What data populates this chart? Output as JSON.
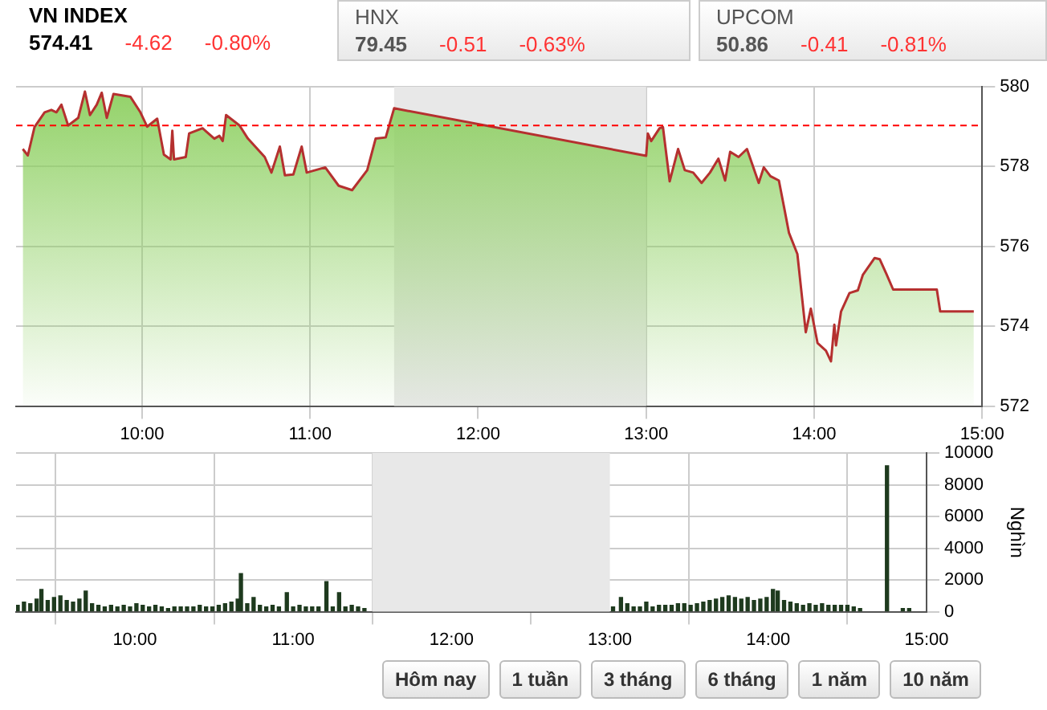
{
  "chart_data": [
    {
      "type": "other",
      "title": "VN INDEX",
      "annotations": [
        "574.41",
        "-4.62",
        "-0.80%"
      ]
    },
    {
      "type": "other",
      "title": "HNX",
      "annotations": [
        "79.45",
        "-0.51",
        "-0.63%"
      ]
    },
    {
      "type": "other",
      "title": "UPCOM",
      "annotations": [
        "50.86",
        "-0.41",
        "-0.81%"
      ]
    },
    {
      "type": "area",
      "xlim": [
        9.25,
        15
      ],
      "ylim": [
        572,
        580
      ],
      "xticks": [
        {
          "value": 10,
          "label": "10:00"
        },
        {
          "value": 11,
          "label": "11:00"
        },
        {
          "value": 12,
          "label": "12:00"
        },
        {
          "value": 13,
          "label": "13:00"
        },
        {
          "value": 14,
          "label": "14:00"
        },
        {
          "value": 15,
          "label": "15:00"
        }
      ],
      "yticks": [
        572,
        574,
        576,
        578,
        580
      ],
      "grid": true,
      "bands": [
        {
          "axis": "x",
          "from": 11.5,
          "to": 13,
          "color": "#e8e8e8"
        }
      ],
      "ref_lines": [
        {
          "axis": "y",
          "value": 579.03,
          "color": "#ff0000",
          "line_style": "dashed"
        }
      ],
      "series": [
        {
          "color": "#b5302f",
          "x": [
            9.29,
            9.32,
            9.36,
            9.42,
            9.46,
            9.49,
            9.52,
            9.56,
            9.62,
            9.66,
            9.69,
            9.73,
            9.76,
            9.79,
            9.83,
            9.93,
            9.99,
            10.03,
            10.09,
            10.13,
            10.17,
            10.18,
            10.19,
            10.26,
            10.28,
            10.36,
            10.43,
            10.46,
            10.48,
            10.5,
            10.58,
            10.63,
            10.73,
            10.77,
            10.82,
            10.85,
            10.9,
            10.95,
            10.98,
            11.09,
            11.17,
            11.25,
            11.34,
            11.39,
            11.45,
            11.5,
            13.0,
            13.01,
            13.03,
            13.08,
            13.1,
            13.14,
            13.19,
            13.23,
            13.28,
            13.33,
            13.38,
            13.43,
            13.47,
            13.5,
            13.55,
            13.6,
            13.67,
            13.7,
            13.74,
            13.79,
            13.82,
            13.85,
            13.9,
            13.95,
            13.98,
            14.02,
            14.07,
            14.1,
            14.12,
            14.13,
            14.16,
            14.21,
            14.26,
            14.29,
            14.36,
            14.39,
            14.43,
            14.47,
            14.73,
            14.75,
            14.95
          ],
          "values": [
            578.44,
            578.28,
            578.99,
            579.36,
            579.42,
            579.36,
            579.55,
            579.03,
            579.22,
            579.88,
            579.29,
            579.55,
            579.85,
            579.22,
            579.82,
            579.75,
            579.36,
            579.0,
            579.2,
            578.3,
            578.18,
            578.9,
            578.18,
            578.24,
            578.83,
            578.96,
            578.7,
            578.77,
            578.64,
            579.29,
            579.03,
            578.7,
            578.24,
            577.85,
            578.5,
            577.78,
            577.8,
            578.5,
            577.85,
            577.98,
            577.52,
            577.41,
            577.91,
            578.7,
            578.73,
            579.46,
            578.27,
            578.83,
            578.64,
            578.96,
            578.99,
            577.63,
            578.44,
            577.91,
            577.85,
            577.59,
            577.85,
            578.2,
            577.65,
            578.37,
            578.24,
            578.44,
            577.59,
            577.98,
            577.76,
            577.65,
            577.0,
            576.34,
            575.81,
            573.85,
            574.44,
            573.58,
            573.39,
            573.12,
            574.04,
            573.52,
            574.37,
            574.83,
            574.9,
            575.29,
            575.71,
            575.68,
            575.31,
            574.92,
            574.92,
            574.37,
            574.37
          ]
        }
      ]
    },
    {
      "type": "bar",
      "ylabel": "Nghìn",
      "xlim": [
        9.25,
        15
      ],
      "ylim": [
        0,
        10000
      ],
      "xticks": [
        {
          "value": 10,
          "label": "10:00"
        },
        {
          "value": 11,
          "label": "11:00"
        },
        {
          "value": 12,
          "label": "12:00"
        },
        {
          "value": 13,
          "label": "13:00"
        },
        {
          "value": 14,
          "label": "14:00"
        },
        {
          "value": 15,
          "label": "15:00"
        }
      ],
      "yticks": [
        0,
        2000,
        4000,
        6000,
        8000,
        10000
      ],
      "grid": true,
      "bands": [
        {
          "axis": "x",
          "from": 11.5,
          "to": 13,
          "color": "#e8e8e8"
        }
      ],
      "series": [
        {
          "color": "#1e3a1e",
          "x": [
            9.26,
            9.3,
            9.34,
            9.38,
            9.41,
            9.45,
            9.49,
            9.53,
            9.57,
            9.61,
            9.65,
            9.69,
            9.73,
            9.77,
            9.81,
            9.85,
            9.89,
            9.93,
            9.97,
            10.01,
            10.05,
            10.09,
            10.13,
            10.17,
            10.21,
            10.25,
            10.29,
            10.33,
            10.37,
            10.41,
            10.45,
            10.49,
            10.53,
            10.57,
            10.61,
            10.65,
            10.67,
            10.71,
            10.75,
            10.79,
            10.83,
            10.87,
            10.91,
            10.96,
            11.0,
            11.04,
            11.08,
            11.12,
            11.16,
            11.21,
            11.25,
            11.29,
            11.33,
            11.37,
            11.41,
            11.45,
            13.02,
            13.07,
            13.11,
            13.15,
            13.19,
            13.23,
            13.27,
            13.31,
            13.35,
            13.39,
            13.43,
            13.47,
            13.51,
            13.55,
            13.59,
            13.63,
            13.67,
            13.71,
            13.75,
            13.79,
            13.83,
            13.87,
            13.91,
            13.95,
            13.99,
            14.03,
            14.06,
            14.1,
            14.14,
            14.18,
            14.22,
            14.26,
            14.3,
            14.34,
            14.38,
            14.42,
            14.46,
            14.5,
            14.54,
            14.58,
            14.75,
            14.85,
            14.89
          ],
          "values": [
            400,
            600,
            500,
            800,
            1400,
            700,
            900,
            1000,
            700,
            600,
            800,
            1300,
            500,
            400,
            300,
            400,
            300,
            400,
            300,
            500,
            400,
            300,
            400,
            300,
            200,
            300,
            300,
            300,
            300,
            400,
            300,
            300,
            400,
            500,
            600,
            800,
            2400,
            500,
            900,
            400,
            300,
            400,
            300,
            1200,
            300,
            400,
            300,
            300,
            300,
            1900,
            300,
            1200,
            300,
            400,
            300,
            200,
            300,
            900,
            500,
            300,
            300,
            600,
            300,
            400,
            400,
            400,
            500,
            500,
            400,
            500,
            600,
            700,
            800,
            900,
            1000,
            900,
            800,
            900,
            700,
            800,
            900,
            1400,
            1300,
            700,
            600,
            500,
            400,
            500,
            400,
            500,
            400,
            400,
            400,
            400,
            300,
            200,
            9200,
            200,
            200
          ]
        }
      ]
    },
    {
      "type": "other",
      "annotations": [
        "Hôm nay",
        "1 tuần",
        "3 tháng",
        "6 tháng",
        "1 năm",
        "10 năm"
      ]
    }
  ]
}
